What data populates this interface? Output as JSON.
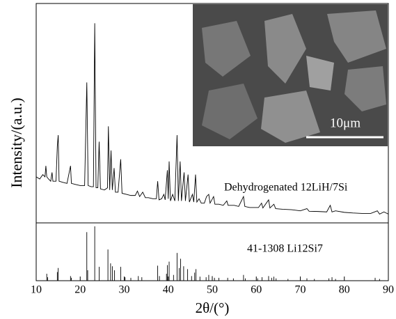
{
  "chart_data": [
    {
      "type": "line",
      "ylabel": "Intensity/(a.u.)",
      "annotation": "Dehydrogenated 12LiH/7Si",
      "color": "#000000",
      "ylim": [
        0,
        100
      ],
      "x": [
        10,
        10.8,
        11.5,
        12.0,
        12.2,
        12.4,
        12.8,
        13.3,
        13.6,
        13.8,
        14.5,
        14.8,
        15.0,
        15.2,
        16,
        17,
        17.8,
        18.0,
        19,
        20,
        21.0,
        21.5,
        21.8,
        22.5,
        23.0,
        23.3,
        23.6,
        24.0,
        24.3,
        24.6,
        25.5,
        26.2,
        26.4,
        26.7,
        27.0,
        27.3,
        27.7,
        28.0,
        28.6,
        29.2,
        29.5,
        30.5,
        31.5,
        32.5,
        33.0,
        33.5,
        34.2,
        34.8,
        35.5,
        36.5,
        37.3,
        37.6,
        37.9,
        38.5,
        39.0,
        39.3,
        39.8,
        40.0,
        40.2,
        40.5,
        41.0,
        41.5,
        42.0,
        42.3,
        42.7,
        43.0,
        43.6,
        43.9,
        44.5,
        44.8,
        45.5,
        45.8,
        46.2,
        46.5,
        47,
        47.5,
        48.2,
        48.7,
        49.2,
        49.5,
        50.3,
        50.6,
        51.5,
        52.5,
        53.3,
        53.6,
        55,
        56,
        57.1,
        57.4,
        58.5,
        59.5,
        60.5,
        61.2,
        61.5,
        62.8,
        63.1,
        64.0,
        64.4,
        66,
        68,
        70,
        71.5,
        72,
        74,
        76,
        76.8,
        77.2,
        78,
        80,
        82,
        84,
        86,
        87.5,
        88,
        89,
        90
      ],
      "values": [
        21,
        20,
        22,
        21,
        26,
        21,
        20,
        19,
        23,
        19,
        19,
        35,
        40,
        19,
        18.5,
        18,
        26,
        18,
        17.5,
        17,
        17,
        64,
        17,
        16.5,
        16.5,
        91,
        16,
        16,
        37,
        15.5,
        15,
        16,
        44,
        15,
        33,
        15,
        25,
        14,
        14,
        29,
        13.5,
        13,
        12.5,
        12.5,
        14.5,
        12,
        14,
        11.5,
        11.5,
        11,
        11,
        19,
        10.5,
        11,
        13,
        10.5,
        24,
        11,
        28,
        10,
        13,
        10,
        40,
        10,
        28,
        10,
        23,
        10,
        22,
        9.5,
        13,
        9.5,
        22,
        9.5,
        11,
        9,
        9,
        12,
        13,
        9,
        12,
        8.5,
        8.5,
        8,
        10,
        8,
        8,
        7.5,
        12,
        7.5,
        7,
        7,
        7,
        9,
        6.8,
        10.5,
        6.8,
        8.5,
        6.5,
        6.2,
        6,
        5.5,
        6.5,
        5.3,
        5.2,
        5,
        8,
        5,
        5.5,
        4.8,
        4.5,
        4.3,
        4.3,
        5.5,
        4,
        5,
        4
      ]
    },
    {
      "type": "stick",
      "annotation": "41-1308 Li12Si7",
      "xlabel": "2θ/(°)",
      "color": "#000000",
      "ylim": [
        0,
        100
      ],
      "xlim": [
        10,
        90
      ],
      "xticks": [
        10,
        20,
        30,
        40,
        50,
        60,
        70,
        80,
        90
      ],
      "x": [
        12.4,
        12.6,
        14.8,
        15.0,
        17.8,
        18.0,
        21.5,
        21.7,
        23.3,
        24.3,
        26.3,
        26.9,
        27.3,
        27.8,
        29.2,
        30.2,
        31.5,
        33.2,
        34.0,
        37.6,
        38.0,
        39.6,
        39.8,
        40.2,
        41.2,
        42.0,
        42.5,
        42.8,
        43.5,
        44.4,
        45.3,
        46.0,
        46.3,
        47.2,
        48.6,
        49.2,
        50.0,
        50.5,
        51.5,
        53.5,
        54.8,
        57.1,
        57.5,
        60.3,
        61.3,
        62.8,
        63.5,
        64.0,
        64.5,
        67.2,
        71.5,
        73.2,
        76.5,
        77.2,
        78.0,
        87.0,
        88.0
      ],
      "values": [
        12,
        6,
        15,
        22,
        8,
        5,
        84,
        18,
        94,
        24,
        54,
        30,
        25,
        18,
        24,
        6,
        5,
        8,
        6,
        26,
        8,
        12,
        27,
        33,
        10,
        48,
        22,
        38,
        25,
        20,
        8,
        14,
        20,
        7,
        6,
        10,
        8,
        5,
        5,
        5,
        4,
        10,
        4,
        4,
        6,
        8,
        5,
        7,
        4,
        3,
        4,
        3,
        4,
        6,
        3,
        5,
        3
      ]
    },
    {
      "type": "image",
      "annotation": "10μm"
    }
  ]
}
